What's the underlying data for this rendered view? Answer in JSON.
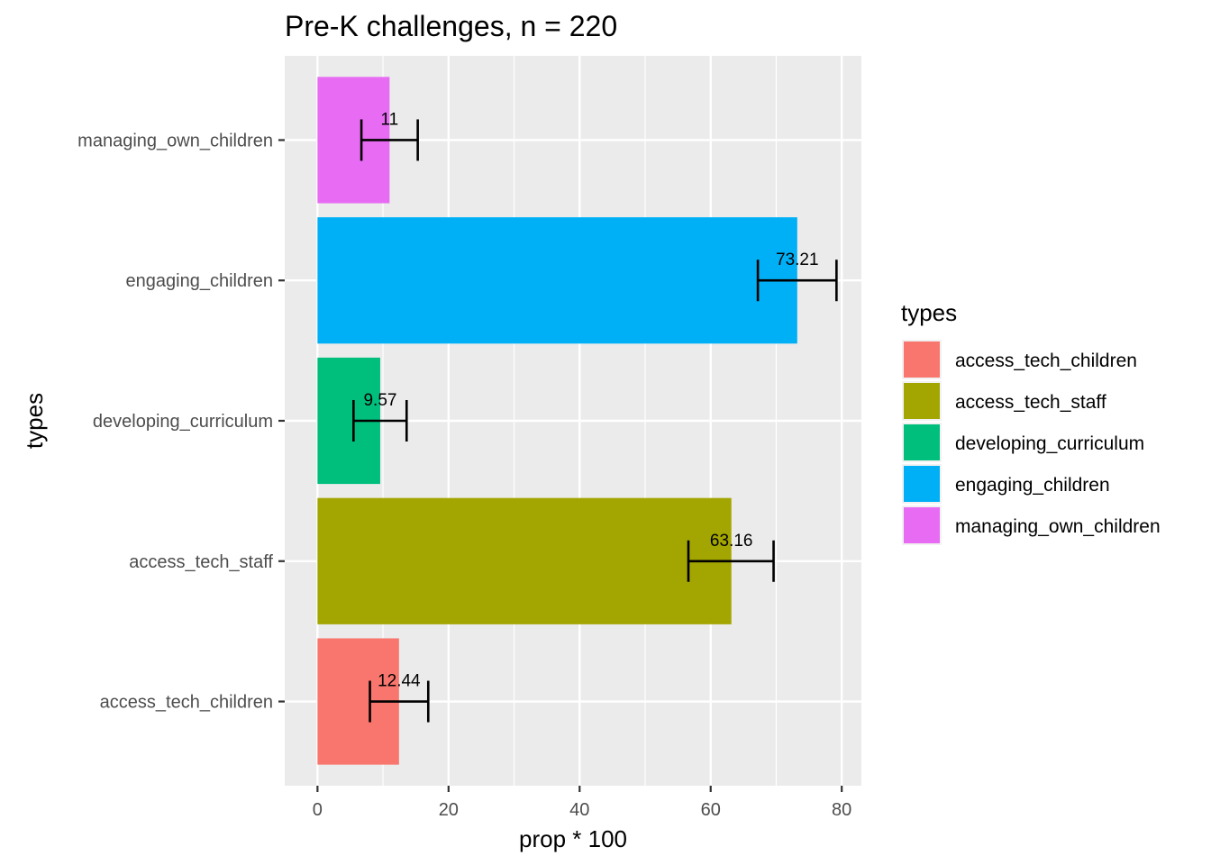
{
  "chart_data": {
    "type": "bar",
    "orientation": "horizontal",
    "title": "Pre-K challenges, n = 220",
    "xlabel": "prop * 100",
    "ylabel": "types",
    "xlim": [
      -5,
      83
    ],
    "x_ticks": [
      0,
      20,
      40,
      60,
      80
    ],
    "grid": true,
    "legend_placement": "right",
    "legend_title": "types",
    "categories": [
      "access_tech_children",
      "access_tech_staff",
      "developing_curriculum",
      "engaging_children",
      "managing_own_children"
    ],
    "values": [
      12.44,
      63.16,
      9.57,
      73.21,
      11
    ],
    "value_labels": [
      "12.44",
      "63.16",
      "9.57",
      "73.21",
      "11"
    ],
    "error_low": [
      8.0,
      56.6,
      5.5,
      67.2,
      6.7
    ],
    "error_high": [
      16.9,
      69.6,
      13.6,
      79.2,
      15.3
    ],
    "colors": [
      "#F8766D",
      "#A3A500",
      "#00BF7D",
      "#00B0F6",
      "#E76BF3"
    ]
  }
}
